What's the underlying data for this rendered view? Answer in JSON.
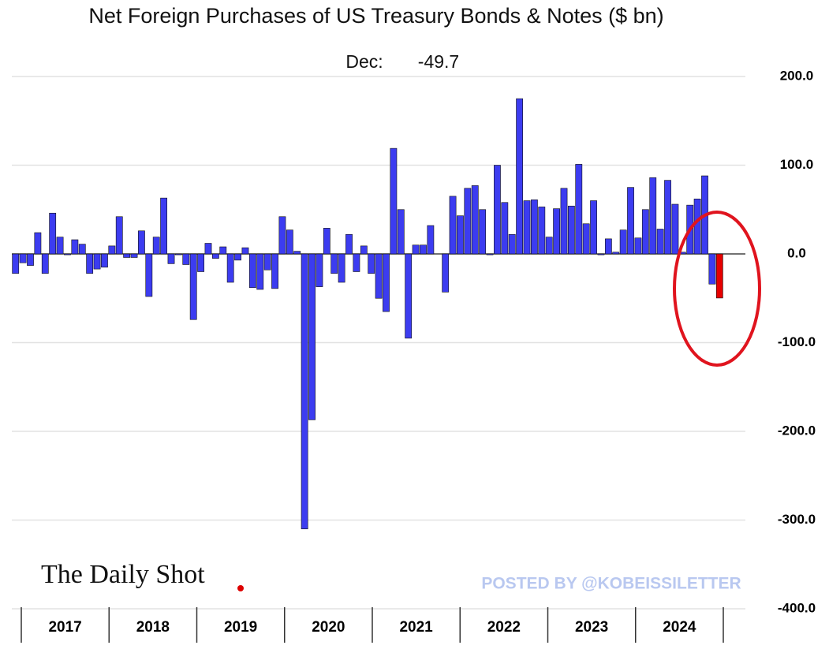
{
  "chart_data": {
    "type": "bar",
    "title": "Net Foreign Purchases of US Treasury Bonds & Notes ($ bn)",
    "annotation_label": "Dec:",
    "source": "The Daily Shot",
    "watermark": "POSTED BY @KOBEISSILETTER",
    "year_labels": [
      "2017",
      "2018",
      "2019",
      "2020",
      "2021",
      "2022",
      "2023",
      "2024"
    ],
    "values": [
      -22,
      -10,
      -13,
      24,
      -22,
      46,
      19,
      -1,
      16,
      11,
      -22,
      -17,
      -15,
      9,
      42,
      -4,
      -4,
      26,
      -48,
      19,
      63,
      -11,
      -1,
      -12,
      -74,
      -20,
      12,
      -5,
      8,
      -32,
      -7,
      7,
      -38,
      -40,
      -18,
      -39,
      42,
      27,
      3,
      -310,
      -187,
      -37,
      29,
      -22,
      -32,
      22,
      -20,
      9,
      -22,
      -50,
      -65,
      119,
      50,
      -95,
      10,
      10,
      32,
      0,
      -43,
      65,
      43,
      74,
      77,
      50,
      -1,
      100,
      58,
      22,
      175,
      60,
      61,
      53,
      19,
      51,
      74,
      54,
      101,
      34,
      60,
      -1,
      17,
      2,
      27,
      75,
      18,
      50,
      86,
      28,
      83,
      56,
      2,
      55,
      62,
      88,
      -34,
      -49.7
    ],
    "color": "#3c3cf0",
    "last_color": "#e60000",
    "ylim": [
      -400,
      200
    ],
    "yticks": [
      {
        "value": -400,
        "label": "-400.0"
      },
      {
        "value": -300,
        "label": "-300.0"
      },
      {
        "value": -200,
        "label": "-200.0"
      },
      {
        "value": -100,
        "label": "-100.0"
      },
      {
        "value": 0,
        "label": "0.0"
      },
      {
        "value": 100,
        "label": "100.0"
      },
      {
        "value": 200,
        "label": "200.0"
      }
    ],
    "grid": true
  }
}
